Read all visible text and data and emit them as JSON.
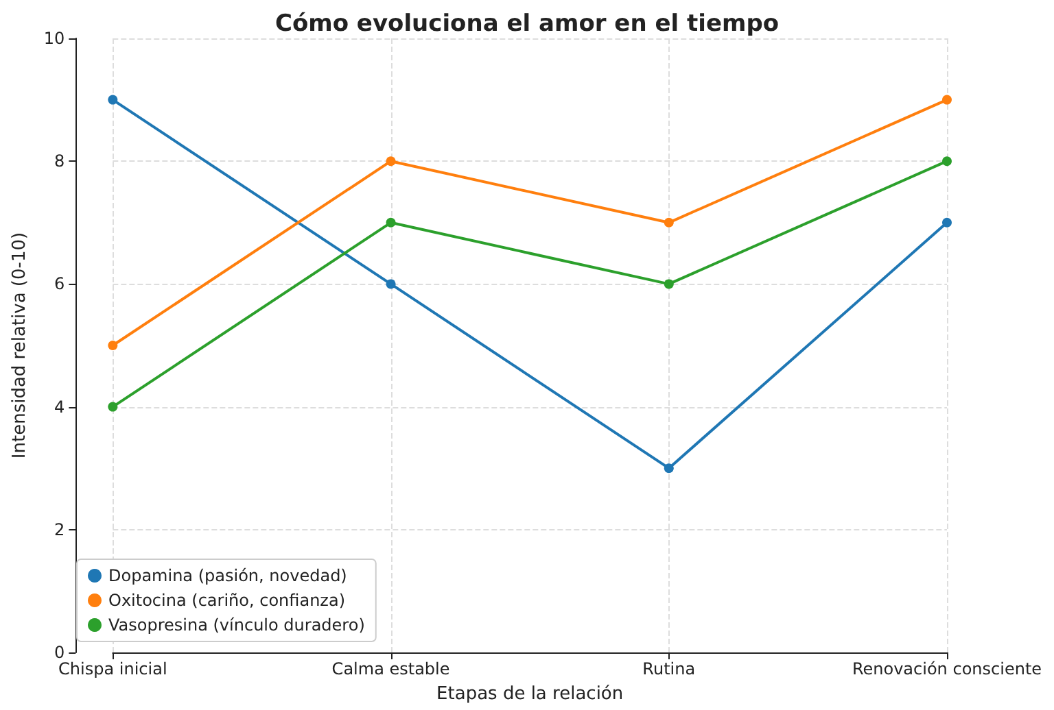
{
  "chart_data": {
    "type": "line",
    "title": "Cómo evoluciona el amor en el tiempo",
    "xlabel": "Etapas de la relación",
    "ylabel": "Intensidad relativa (0-10)",
    "categories": [
      "Chispa inicial",
      "Calma estable",
      "Rutina",
      "Renovación consciente"
    ],
    "series": [
      {
        "name": "Dopamina (pasión, novedad)",
        "color": "#1f77b4",
        "values": [
          9,
          6,
          3,
          7
        ]
      },
      {
        "name": "Oxitocina (cariño, confianza)",
        "color": "#ff7f0e",
        "values": [
          5,
          8,
          7,
          9
        ]
      },
      {
        "name": "Vasopresina (vínculo duradero)",
        "color": "#2ca02c",
        "values": [
          4,
          7,
          6,
          8
        ]
      }
    ],
    "ylim": [
      0,
      10
    ],
    "yticks": [
      0,
      2,
      4,
      6,
      8,
      10
    ],
    "grid": true,
    "legend": "bottom left",
    "marker": "circle",
    "line_style": "solid"
  }
}
